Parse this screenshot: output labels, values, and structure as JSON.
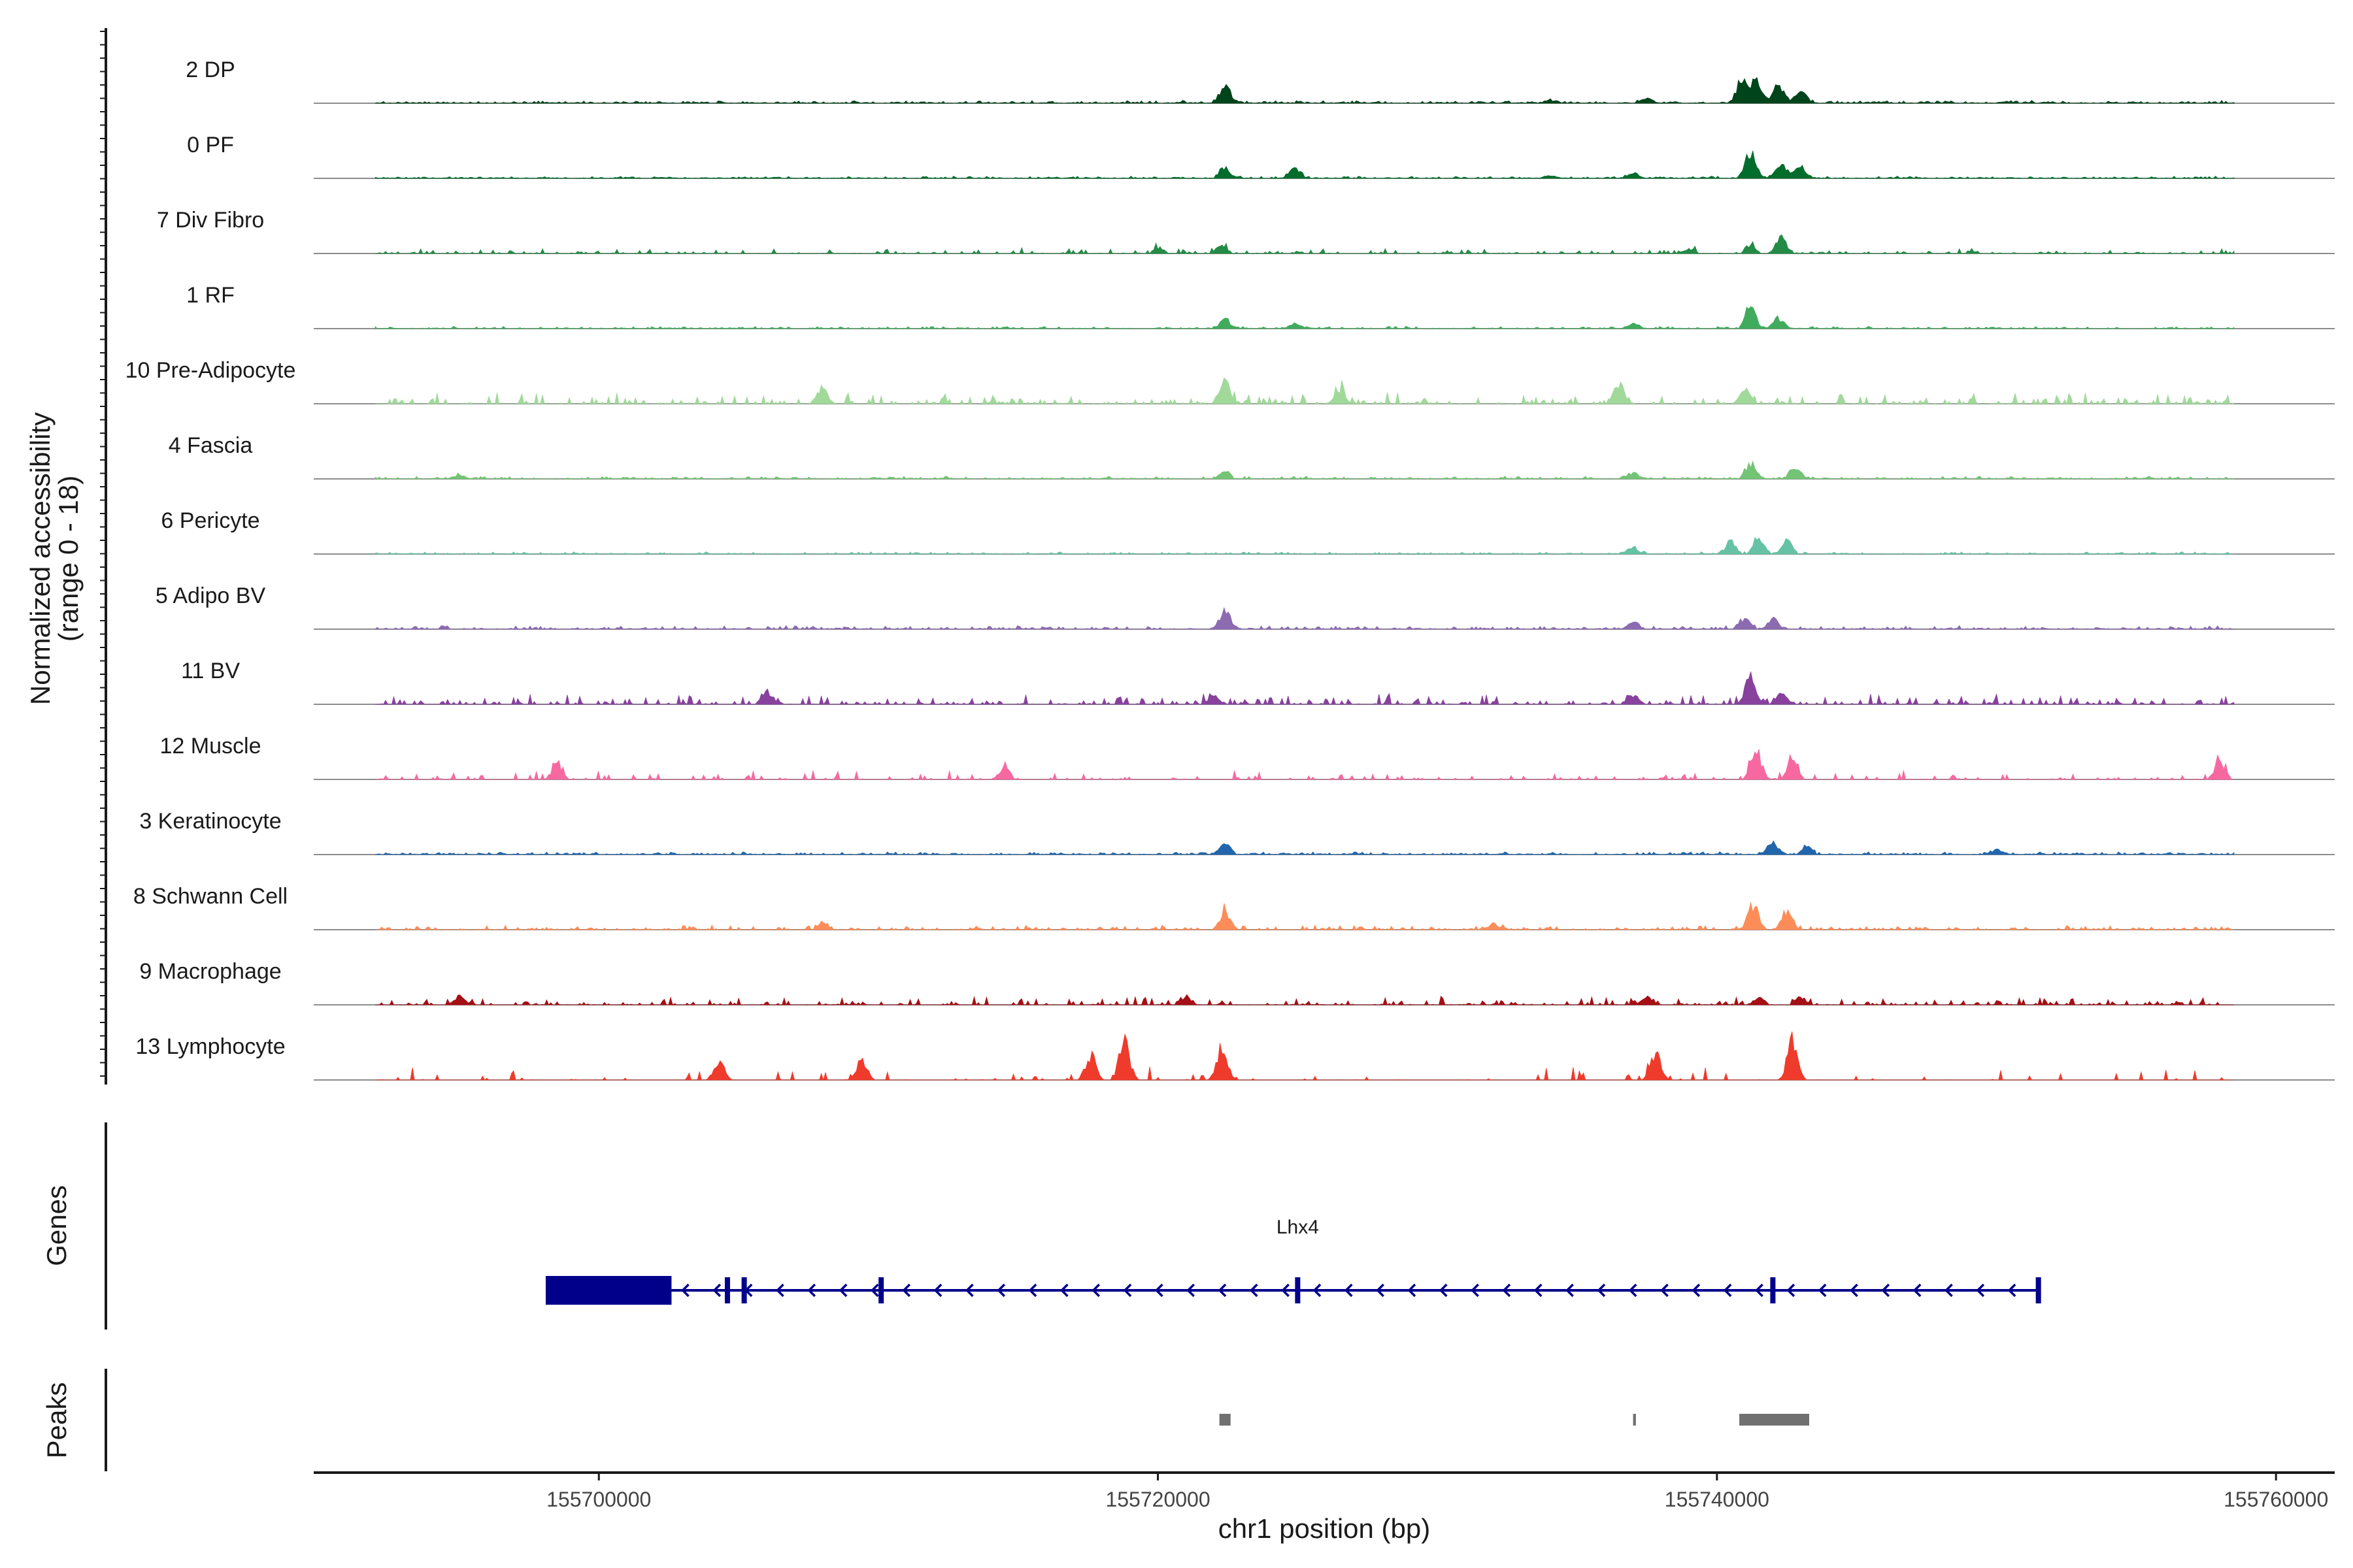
{
  "chart_data": {
    "type": "area",
    "title": "",
    "chromosome": "chr1",
    "xlabel": "chr1 position (bp)",
    "ylabel_line1": "Normalized accessibility",
    "ylabel_line2": "(range 0 - 18)",
    "y_range": [
      0,
      18
    ],
    "xlim": [
      155689800,
      155762100
    ],
    "x_ticks": [
      155700000,
      155720000,
      155740000,
      155760000
    ],
    "x_tick_labels": [
      "155700000",
      "155720000",
      "155740000",
      "155760000"
    ],
    "genes_label": "Genes",
    "peaks_label": "Peaks",
    "tracks": [
      {
        "name": "2 DP",
        "color": "#00441b",
        "peaks": [
          [
            155722400,
            7.5
          ],
          [
            155740900,
            9.5
          ],
          [
            155741400,
            8.5
          ],
          [
            155742200,
            7.0
          ],
          [
            155743000,
            5.5
          ],
          [
            155737500,
            2.0
          ],
          [
            155734000,
            1.0
          ]
        ],
        "noise": 0.6,
        "coverage": 0.92
      },
      {
        "name": "0 PF",
        "color": "#006d2c",
        "peaks": [
          [
            155722400,
            4.5
          ],
          [
            155724900,
            4.0
          ],
          [
            155741200,
            11.0
          ],
          [
            155742300,
            6.5
          ],
          [
            155743000,
            5.0
          ],
          [
            155737000,
            2.0
          ],
          [
            155734000,
            1.0
          ]
        ],
        "noise": 0.5,
        "coverage": 0.88
      },
      {
        "name": "7 Div Fibro",
        "color": "#238b45",
        "peaks": [
          [
            155722300,
            3.0
          ],
          [
            155720000,
            2.5
          ],
          [
            155742300,
            7.0
          ],
          [
            155741200,
            3.5
          ],
          [
            155739000,
            2.0
          ]
        ],
        "noise": 1.2,
        "coverage": 0.35
      },
      {
        "name": "1 RF",
        "color": "#41ab5d",
        "peaks": [
          [
            155722400,
            3.5
          ],
          [
            155724900,
            2.0
          ],
          [
            155741200,
            9.0
          ],
          [
            155742200,
            4.0
          ],
          [
            155737000,
            2.0
          ]
        ],
        "noise": 0.5,
        "coverage": 0.8
      },
      {
        "name": "10 Pre-Adipocyte",
        "color": "#a1d99b",
        "peaks": [
          [
            155722400,
            8.5
          ],
          [
            155708000,
            6.0
          ],
          [
            155736500,
            8.0
          ],
          [
            155741000,
            6.0
          ],
          [
            155726500,
            5.0
          ]
        ],
        "noise": 2.5,
        "coverage": 0.4
      },
      {
        "name": "4 Fascia",
        "color": "#74c476",
        "peaks": [
          [
            155722400,
            3.0
          ],
          [
            155741200,
            6.0
          ],
          [
            155742800,
            5.0
          ],
          [
            155737000,
            2.5
          ],
          [
            155695000,
            1.5
          ]
        ],
        "noise": 0.6,
        "coverage": 0.75
      },
      {
        "name": "6 Pericyte",
        "color": "#66c2a4",
        "peaks": [
          [
            155741500,
            7.0
          ],
          [
            155742500,
            5.5
          ],
          [
            155740500,
            5.0
          ],
          [
            155737000,
            2.5
          ]
        ],
        "noise": 0.5,
        "coverage": 0.6
      },
      {
        "name": "5 Adipo BV",
        "color": "#8c6bb1",
        "peaks": [
          [
            155722400,
            7.5
          ],
          [
            155742000,
            4.0
          ],
          [
            155741000,
            4.0
          ],
          [
            155737000,
            3.0
          ]
        ],
        "noise": 0.8,
        "coverage": 0.7
      },
      {
        "name": "11 BV",
        "color": "#88419d",
        "peaks": [
          [
            155741200,
            11.0
          ],
          [
            155706000,
            5.0
          ],
          [
            155722000,
            4.0
          ],
          [
            155737000,
            4.0
          ],
          [
            155742300,
            4.0
          ]
        ],
        "noise": 2.2,
        "coverage": 0.45
      },
      {
        "name": "12 Muscle",
        "color": "#f768a1",
        "peaks": [
          [
            155741400,
            12.0
          ],
          [
            155742700,
            7.5
          ],
          [
            155758000,
            7.0
          ],
          [
            155698500,
            6.0
          ],
          [
            155714500,
            5.0
          ]
        ],
        "noise": 2.0,
        "coverage": 0.28
      },
      {
        "name": "3 Keratinocyte",
        "color": "#2166ac",
        "peaks": [
          [
            155722400,
            4.5
          ],
          [
            155742000,
            5.0
          ],
          [
            155750000,
            2.0
          ],
          [
            155743200,
            3.0
          ]
        ],
        "noise": 0.6,
        "coverage": 0.8
      },
      {
        "name": "8 Schwann Cell",
        "color": "#fc8d59",
        "peaks": [
          [
            155722400,
            7.5
          ],
          [
            155741300,
            10.0
          ],
          [
            155742500,
            7.0
          ],
          [
            155708000,
            2.5
          ],
          [
            155732000,
            2.5
          ]
        ],
        "noise": 1.0,
        "coverage": 0.55
      },
      {
        "name": "9 Macrophage",
        "color": "#a50f15",
        "peaks": [
          [
            155695000,
            3.5
          ],
          [
            155721000,
            3.0
          ],
          [
            155737500,
            3.5
          ],
          [
            155741500,
            3.0
          ],
          [
            155743000,
            3.0
          ]
        ],
        "noise": 1.8,
        "coverage": 0.35
      },
      {
        "name": "13 Lymphocyte",
        "color": "#ef3b2c",
        "peaks": [
          [
            155718800,
            16.0
          ],
          [
            155722300,
            14.0
          ],
          [
            155742700,
            16.0
          ],
          [
            155737800,
            11.0
          ],
          [
            155717600,
            10.0
          ],
          [
            155709400,
            8.0
          ],
          [
            155704300,
            7.5
          ]
        ],
        "noise": 3.0,
        "coverage": 0.12
      }
    ],
    "gene": {
      "name": "Lhx4",
      "strand": "-",
      "start": 155698100,
      "end": 155751500,
      "utr_block": [
        155698100,
        155702600
      ],
      "exons": [
        155704600,
        155705200,
        155710100,
        155725000,
        155742000,
        155751500
      ],
      "color": "#00008b"
    },
    "peak_regions": [
      {
        "start": 155722200,
        "end": 155722600
      },
      {
        "start": 155737000,
        "end": 155737100
      },
      {
        "start": 155740800,
        "end": 155743300
      }
    ]
  }
}
